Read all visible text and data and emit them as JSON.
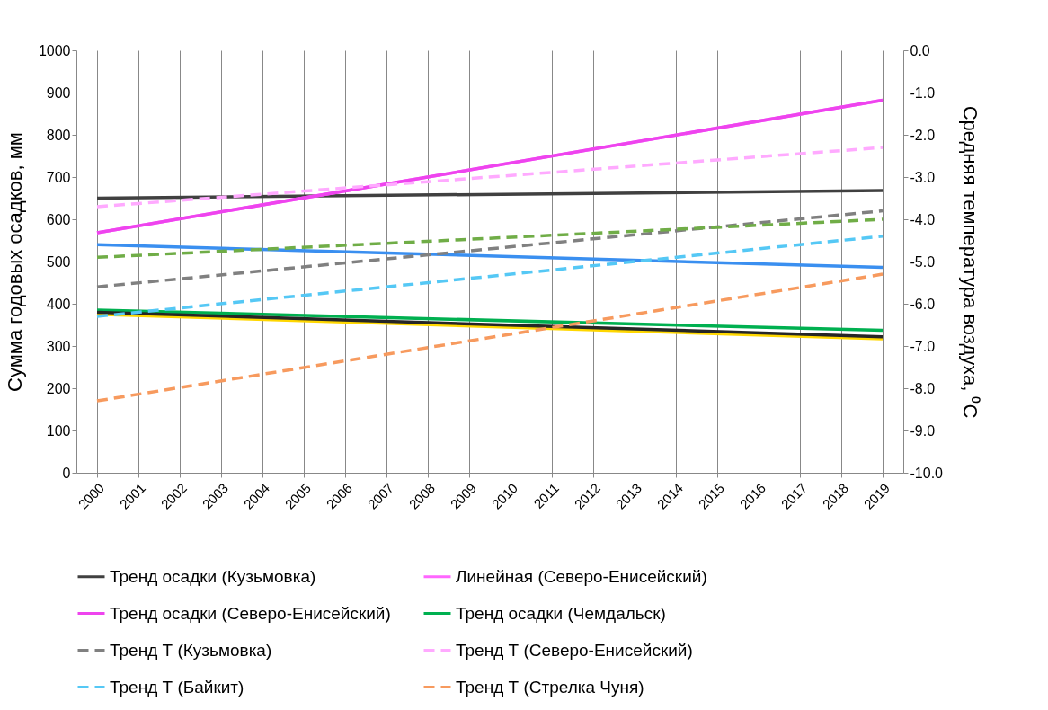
{
  "chart_data": {
    "type": "line",
    "categories": [
      "2000",
      "2001",
      "2002",
      "2003",
      "2004",
      "2005",
      "2006",
      "2007",
      "2008",
      "2009",
      "2010",
      "2011",
      "2012",
      "2013",
      "2014",
      "2015",
      "2016",
      "2017",
      "2018",
      "2019"
    ],
    "ylabel": "Сумма годовых осадков, мм",
    "y2label": "Средняя температура воздуха, ⁰С",
    "ylim": [
      0,
      1000
    ],
    "yticks": [
      0,
      100,
      200,
      300,
      400,
      500,
      600,
      700,
      800,
      900,
      1000
    ],
    "y2lim": [
      -10,
      0
    ],
    "y2ticks": [
      {
        "value": -10,
        "label": "-10.0"
      },
      {
        "value": -9,
        "label": "-9.0"
      },
      {
        "value": -8,
        "label": "-8.0"
      },
      {
        "value": -7,
        "label": "-7.0"
      },
      {
        "value": -6,
        "label": "-6.0"
      },
      {
        "value": -5,
        "label": "-5.0"
      },
      {
        "value": -4,
        "label": "-4.0"
      },
      {
        "value": -3,
        "label": "-3.0"
      },
      {
        "value": -2,
        "label": "-2.0"
      },
      {
        "value": -1,
        "label": "-1.0"
      },
      {
        "value": 0,
        "label": "0.0"
      }
    ],
    "grid": "x",
    "legend": "bottom",
    "series": [
      {
        "name": "Тренд осадки (Кузьмовка)",
        "color": "#404040",
        "line_style": "solid",
        "values": [
          650,
          null,
          null,
          null,
          null,
          null,
          null,
          null,
          null,
          null,
          null,
          null,
          null,
          null,
          null,
          null,
          null,
          null,
          null,
          668
        ]
      },
      {
        "name": "Линейная (Северо-Енисейский)",
        "color": "#ff66ff",
        "line_style": "solid",
        "values": [
          568,
          null,
          null,
          null,
          null,
          null,
          null,
          null,
          null,
          null,
          null,
          null,
          null,
          null,
          null,
          null,
          null,
          null,
          null,
          882
        ]
      },
      {
        "name": "Тренд осадки (Северо-Енисейский)",
        "color": "#ee44ee",
        "line_style": "solid",
        "values": [
          568,
          null,
          null,
          null,
          null,
          null,
          null,
          null,
          null,
          null,
          null,
          null,
          null,
          null,
          null,
          null,
          null,
          null,
          null,
          882
        ]
      },
      {
        "name": "Тренд осадки (Чемдальск)",
        "color": "#00b050",
        "line_style": "solid",
        "values": [
          385,
          null,
          null,
          null,
          null,
          null,
          null,
          null,
          null,
          null,
          null,
          null,
          null,
          null,
          null,
          null,
          null,
          null,
          null,
          337
        ]
      },
      {
        "name": "Тренд Т (Кузьмовка)",
        "color": "#808080",
        "line_style": "dashed",
        "axis": "y2",
        "values": [
          -5.6,
          null,
          null,
          null,
          null,
          null,
          null,
          null,
          null,
          null,
          null,
          null,
          null,
          null,
          null,
          null,
          null,
          null,
          null,
          -3.8
        ]
      },
      {
        "name": "Тренд Т (Северо-Енисейский)",
        "color": "#ffaaff",
        "line_style": "dashed",
        "axis": "y2",
        "values": [
          -3.7,
          null,
          null,
          null,
          null,
          null,
          null,
          null,
          null,
          null,
          null,
          null,
          null,
          null,
          null,
          null,
          null,
          null,
          null,
          -2.3
        ]
      },
      {
        "name": "Тренд Т (Байкит)",
        "color": "#55c8f5",
        "line_style": "dashed",
        "axis": "y2",
        "values": [
          -6.3,
          null,
          null,
          null,
          null,
          null,
          null,
          null,
          null,
          null,
          null,
          null,
          null,
          null,
          null,
          null,
          null,
          null,
          null,
          -4.4
        ]
      },
      {
        "name": "Тренд Т (Стрелка Чуня)",
        "color": "#f79a5e",
        "line_style": "dashed",
        "axis": "y2",
        "values": [
          -8.3,
          null,
          null,
          null,
          null,
          null,
          null,
          null,
          null,
          null,
          null,
          null,
          null,
          null,
          null,
          null,
          null,
          null,
          null,
          -5.3
        ]
      },
      {
        "color": "#3a8ff0",
        "line_style": "solid",
        "values": [
          540,
          null,
          null,
          null,
          null,
          null,
          null,
          null,
          null,
          null,
          null,
          null,
          null,
          null,
          null,
          null,
          null,
          null,
          null,
          486
        ]
      },
      {
        "color": "#ffd700",
        "line_style": "solid",
        "values": [
          375,
          null,
          null,
          null,
          null,
          null,
          null,
          null,
          null,
          null,
          null,
          null,
          null,
          null,
          null,
          null,
          null,
          null,
          null,
          317
        ]
      },
      {
        "color": "#262626",
        "line_style": "solid",
        "values": [
          380,
          null,
          null,
          null,
          null,
          null,
          null,
          null,
          null,
          null,
          null,
          null,
          null,
          null,
          null,
          null,
          null,
          null,
          null,
          322
        ]
      },
      {
        "color": "#70ad47",
        "line_style": "dashed",
        "axis": "y2",
        "values": [
          -4.9,
          null,
          null,
          null,
          null,
          null,
          null,
          null,
          null,
          null,
          null,
          null,
          null,
          null,
          null,
          null,
          null,
          null,
          null,
          -4.0
        ]
      }
    ]
  }
}
